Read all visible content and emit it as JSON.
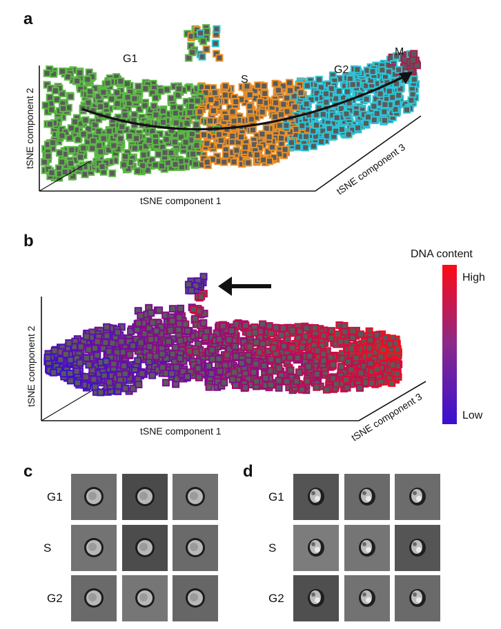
{
  "panels": {
    "a": {
      "letter": "a"
    },
    "b": {
      "letter": "b"
    },
    "c": {
      "letter": "c"
    },
    "d": {
      "letter": "d"
    }
  },
  "chart_data": [
    {
      "id": "panel-a",
      "type": "scatter",
      "title": "",
      "xlabel": "tSNE component 1",
      "ylabel": "tSNE component 2",
      "zlabel": "tSNE component 3",
      "projection": "3d",
      "grid": false,
      "legend": "none",
      "marker": "square",
      "color_by": "cell cycle phase",
      "phase_labels": [
        "G1",
        "S",
        "G2",
        "M"
      ],
      "phase_colors": {
        "G1": "#5cb947",
        "S": "#e8902a",
        "G2": "#2ec4d6",
        "M": "#a3214f"
      },
      "trajectory_arrow": {
        "from": "G1",
        "to": "M",
        "shape": "curved"
      },
      "clusters": [
        {
          "phase": "G1",
          "region": "left",
          "approx_fraction": 0.42
        },
        {
          "phase": "S",
          "region": "center",
          "approx_fraction": 0.3
        },
        {
          "phase": "G2",
          "region": "right",
          "approx_fraction": 0.25
        },
        {
          "phase": "M",
          "region": "far-right tip",
          "approx_fraction": 0.03
        }
      ],
      "outlier_cluster": {
        "location": "top-center",
        "mixed_phases": [
          "G1",
          "S",
          "G2"
        ]
      }
    },
    {
      "id": "panel-b",
      "type": "scatter",
      "title": "",
      "xlabel": "tSNE component 1",
      "ylabel": "tSNE component 2",
      "zlabel": "tSNE component 3",
      "projection": "3d",
      "grid": false,
      "marker": "square",
      "color_by": "DNA content",
      "colorbar": {
        "title": "DNA content",
        "high_label": "High",
        "low_label": "Low",
        "high_color": "#ff0a14",
        "low_color": "#3a0fd0",
        "placement": "right"
      },
      "gradient_direction": "blue (left) to red (right)",
      "annotation_arrow": {
        "points_to": "outlier cluster",
        "direction": "left"
      }
    }
  ],
  "panel_a": {
    "axes": {
      "x": "tSNE component 1",
      "y": "tSNE component 2",
      "z": "tSNE component 3"
    },
    "labels": {
      "g1": "G1",
      "s": "S",
      "g2": "G2",
      "m": "M"
    }
  },
  "panel_b": {
    "axes": {
      "x": "tSNE component 1",
      "y": "tSNE component 2",
      "z": "tSNE component 3"
    },
    "colorbar": {
      "title": "DNA content",
      "high": "High",
      "low": "Low"
    }
  },
  "panel_c": {
    "rows": [
      {
        "label": "G1",
        "tiles": [
          {
            "bg": "#6e6e6e",
            "cell": "round"
          },
          {
            "bg": "#4a4a4a",
            "cell": "round"
          },
          {
            "bg": "#707070",
            "cell": "round"
          }
        ]
      },
      {
        "label": "S",
        "tiles": [
          {
            "bg": "#737373",
            "cell": "round"
          },
          {
            "bg": "#4c4c4c",
            "cell": "round"
          },
          {
            "bg": "#6a6a6a",
            "cell": "round"
          }
        ]
      },
      {
        "label": "G2",
        "tiles": [
          {
            "bg": "#6a6a6a",
            "cell": "round"
          },
          {
            "bg": "#767676",
            "cell": "round"
          },
          {
            "bg": "#666666",
            "cell": "round"
          }
        ]
      }
    ]
  },
  "panel_d": {
    "rows": [
      {
        "label": "G1",
        "tiles": [
          {
            "bg": "#545454",
            "cell": "irregular"
          },
          {
            "bg": "#6a6a6a",
            "cell": "irregular"
          },
          {
            "bg": "#6c6c6c",
            "cell": "irregular"
          }
        ]
      },
      {
        "label": "S",
        "tiles": [
          {
            "bg": "#7c7c7c",
            "cell": "irregular"
          },
          {
            "bg": "#757575",
            "cell": "irregular"
          },
          {
            "bg": "#555555",
            "cell": "irregular"
          }
        ]
      },
      {
        "label": "G2",
        "tiles": [
          {
            "bg": "#4f4f4f",
            "cell": "irregular"
          },
          {
            "bg": "#727272",
            "cell": "irregular"
          },
          {
            "bg": "#6a6a6a",
            "cell": "irregular"
          }
        ]
      }
    ]
  }
}
